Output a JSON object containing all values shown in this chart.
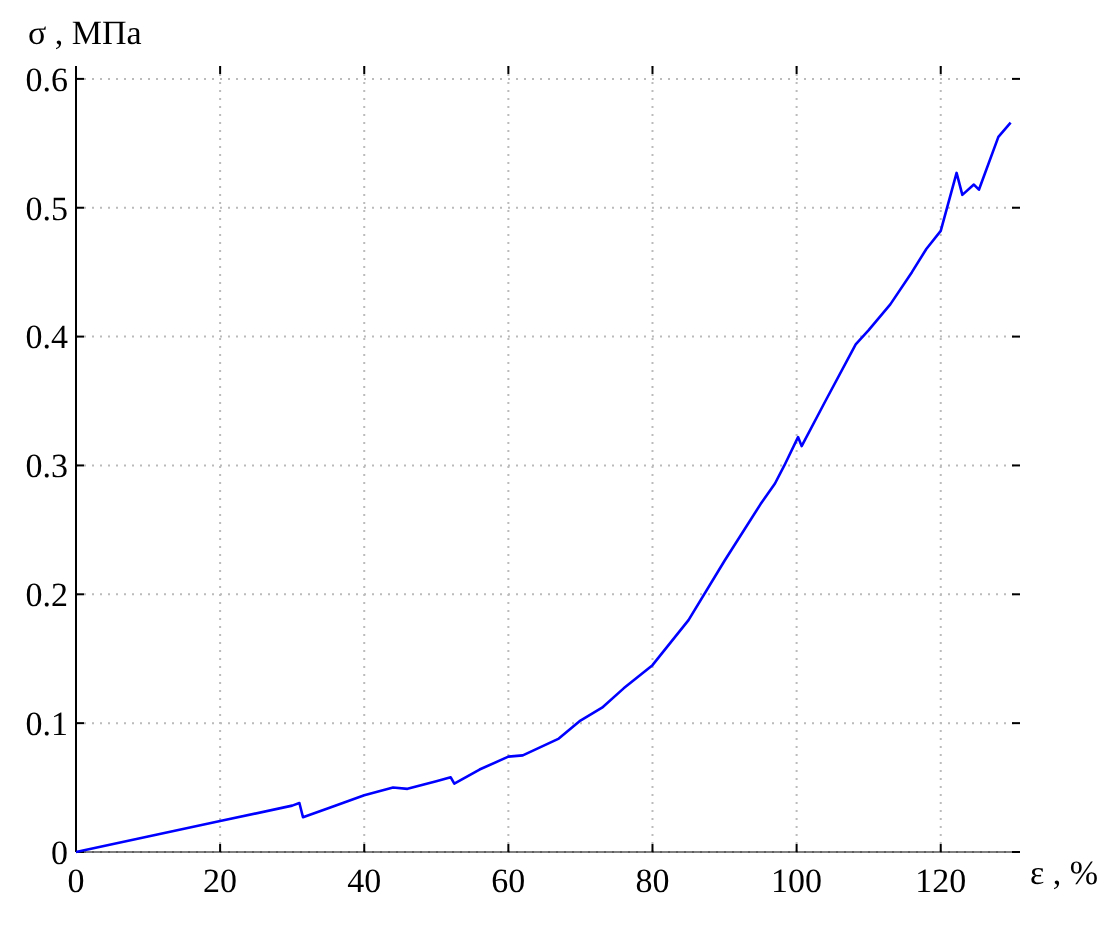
{
  "chart_data": {
    "type": "line",
    "xlabel": "ε , %",
    "ylabel": "σ , МПа",
    "x": [
      0,
      10,
      20,
      30,
      31,
      31.5,
      35,
      40,
      44,
      46,
      50,
      52,
      52.5,
      56,
      60,
      62,
      67,
      70,
      73,
      76,
      80,
      85,
      90,
      95,
      97,
      98.3,
      100.2,
      100.7,
      104,
      108.2,
      110,
      113,
      116,
      118,
      120,
      122.2,
      123,
      124.6,
      125.3,
      128,
      129.7
    ],
    "series": [
      {
        "color": "#0000ff",
        "values": [
          0,
          0.012,
          0.024,
          0.036,
          0.038,
          0.027,
          0.034,
          0.044,
          0.05,
          0.049,
          0.055,
          0.058,
          0.053,
          0.064,
          0.074,
          0.075,
          0.088,
          0.102,
          0.112,
          0.127,
          0.145,
          0.18,
          0.226,
          0.27,
          0.286,
          0.3,
          0.322,
          0.315,
          0.35,
          0.394,
          0.405,
          0.425,
          0.45,
          0.468,
          0.482,
          0.527,
          0.51,
          0.518,
          0.514,
          0.555,
          0.566
        ]
      }
    ],
    "xlim": [
      0,
      131
    ],
    "ylim": [
      0,
      0.61
    ],
    "xticks": [
      0,
      20,
      40,
      60,
      80,
      100,
      120
    ],
    "yticks": [
      0,
      0.1,
      0.2,
      0.3,
      0.4,
      0.5,
      0.6
    ],
    "grid": true,
    "marker": "none",
    "line_style": "solid"
  }
}
